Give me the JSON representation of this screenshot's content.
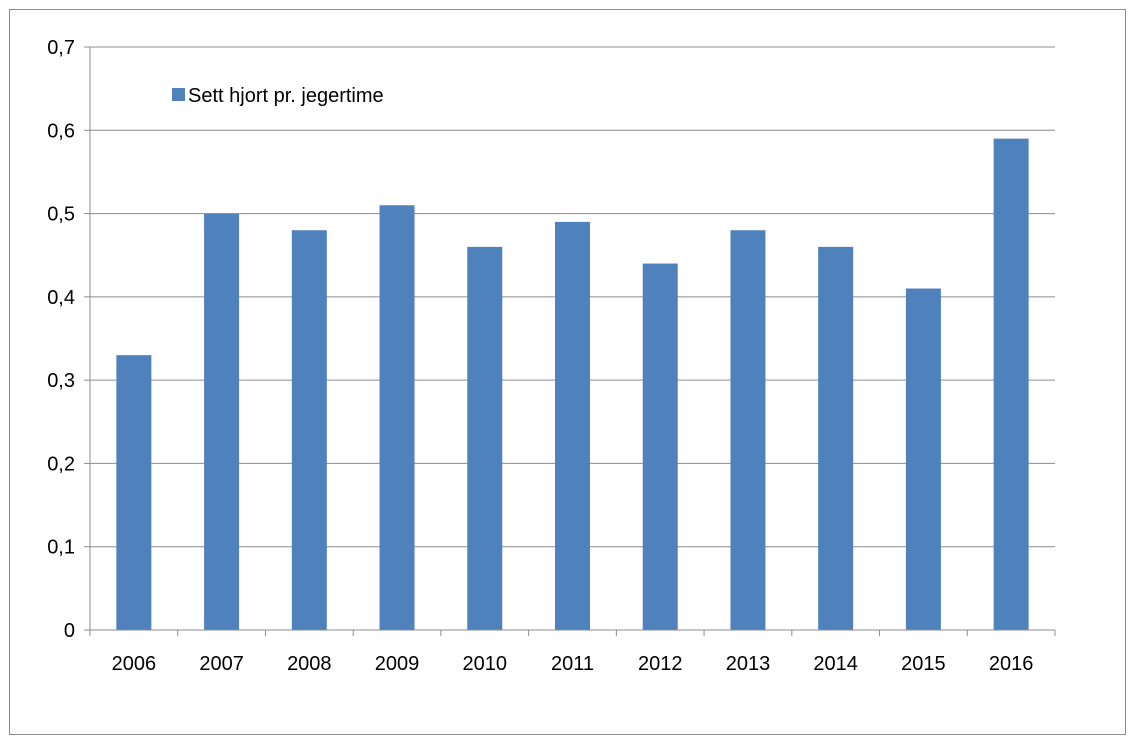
{
  "chart_data": {
    "type": "bar",
    "categories": [
      "2006",
      "2007",
      "2008",
      "2009",
      "2010",
      "2011",
      "2012",
      "2013",
      "2014",
      "2015",
      "2016"
    ],
    "series": [
      {
        "name": "Sett hjort pr. jegertime",
        "values": [
          0.33,
          0.5,
          0.48,
          0.51,
          0.46,
          0.49,
          0.44,
          0.48,
          0.46,
          0.41,
          0.59
        ],
        "color": "#4f81bd"
      }
    ],
    "ylim": [
      0,
      0.7
    ],
    "yticks": [
      0,
      0.1,
      0.2,
      0.3,
      0.4,
      0.5,
      0.6,
      0.7
    ],
    "ytick_labels": [
      "0",
      "0,1",
      "0,2",
      "0,3",
      "0,4",
      "0,5",
      "0,6",
      "0,7"
    ],
    "grid": true,
    "legend_position": "top-left",
    "gridline_color": "#8c8c8c",
    "axis_color": "#8c8c8c"
  }
}
